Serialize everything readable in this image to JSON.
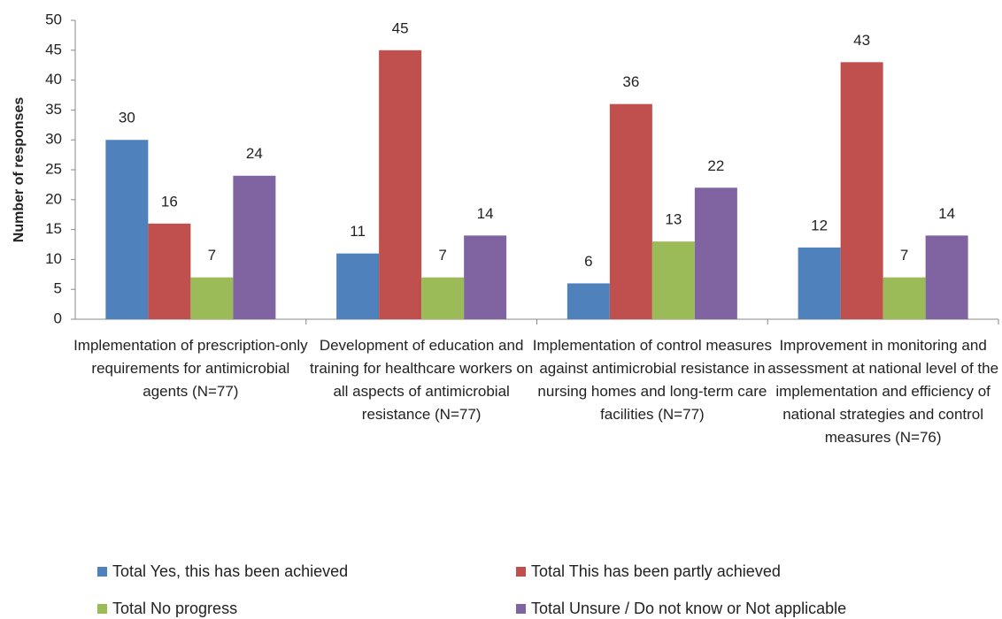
{
  "chart_data": {
    "type": "bar",
    "y_label": "Number of responses",
    "categories": [
      "Implementation of prescription-only requirements for antimicrobial agents (N=77)",
      "Development of education and training for healthcare workers on all aspects of antimicrobial resistance (N=77)",
      "Implementation of control measures against antimicrobial resistance in nursing homes and long-term care facilities (N=77)",
      "Improvement in monitoring and assessment at national level of the implementation and efficiency of national strategies and control measures (N=76)"
    ],
    "series": [
      {
        "name": "Total Yes, this has been achieved",
        "color": "#4f81bd",
        "values": [
          30,
          11,
          6,
          12
        ]
      },
      {
        "name": "Total This has been partly achieved",
        "color": "#c0504d",
        "values": [
          16,
          45,
          36,
          43
        ]
      },
      {
        "name": "Total No progress",
        "color": "#9bbb59",
        "values": [
          7,
          7,
          13,
          7
        ]
      },
      {
        "name": "Total Unsure / Do not know or Not applicable",
        "color": "#8064a2",
        "values": [
          24,
          14,
          22,
          14
        ]
      }
    ],
    "ylim": [
      0,
      50
    ],
    "yticks": [
      0,
      5,
      10,
      15,
      20,
      25,
      30,
      35,
      40,
      45,
      50
    ],
    "grid": false
  }
}
